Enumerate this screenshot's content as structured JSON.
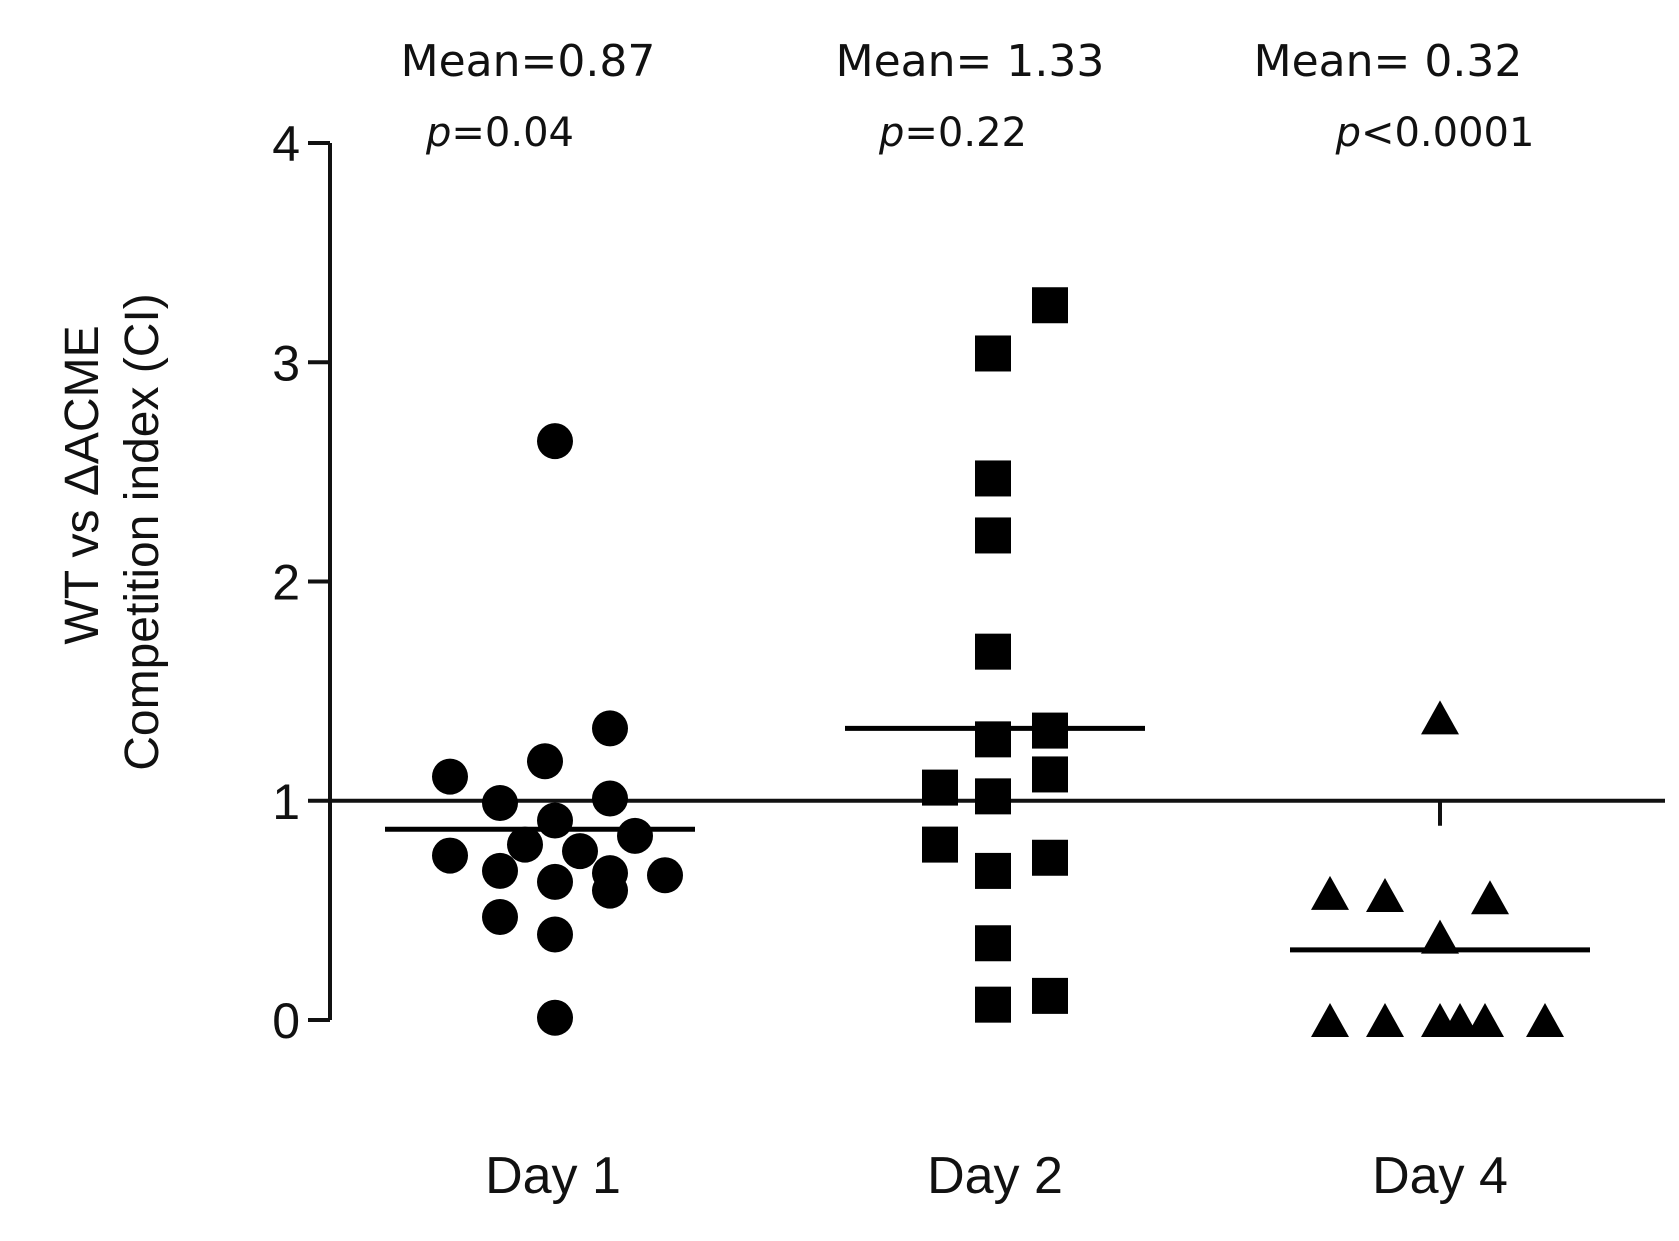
{
  "chart_data": {
    "type": "scatter",
    "title": "",
    "ylabel": [
      "WT vs ΔACME",
      "Competition index (CI)"
    ],
    "ylim": [
      0,
      4
    ],
    "yticks": [
      0,
      1,
      2,
      3,
      4
    ],
    "reference_line": 1,
    "categories": [
      "Day 1",
      "Day 2",
      "Day 4"
    ],
    "series": [
      {
        "name": "Day 1",
        "marker": "circle",
        "mean": 0.87,
        "mean_label": "Mean=0.87",
        "p_symbol": "p",
        "p_text": "=0.04",
        "values": [
          2.64,
          1.33,
          1.18,
          1.11,
          1.01,
          0.99,
          0.91,
          0.84,
          0.8,
          0.77,
          0.75,
          0.68,
          0.67,
          0.66,
          0.63,
          0.59,
          0.47,
          0.39,
          0.01
        ]
      },
      {
        "name": "Day 2",
        "marker": "square",
        "mean": 1.33,
        "mean_label": "Mean= 1.33",
        "p_symbol": "p",
        "p_text": "=0.22",
        "values": [
          3.26,
          3.04,
          2.47,
          2.21,
          1.68,
          1.32,
          1.28,
          1.12,
          1.06,
          1.02,
          0.8,
          0.74,
          0.68,
          0.35,
          0.11,
          0.07
        ]
      },
      {
        "name": "Day 4",
        "marker": "triangle",
        "mean": 0.32,
        "mean_label": "Mean= 0.32",
        "p_symbol": "p",
        "p_text": "<0.0001",
        "values": [
          1.38,
          0.58,
          0.57,
          0.56,
          0.38,
          0.0,
          0.0,
          0.0,
          0.0,
          0.0,
          0.0
        ]
      }
    ]
  }
}
